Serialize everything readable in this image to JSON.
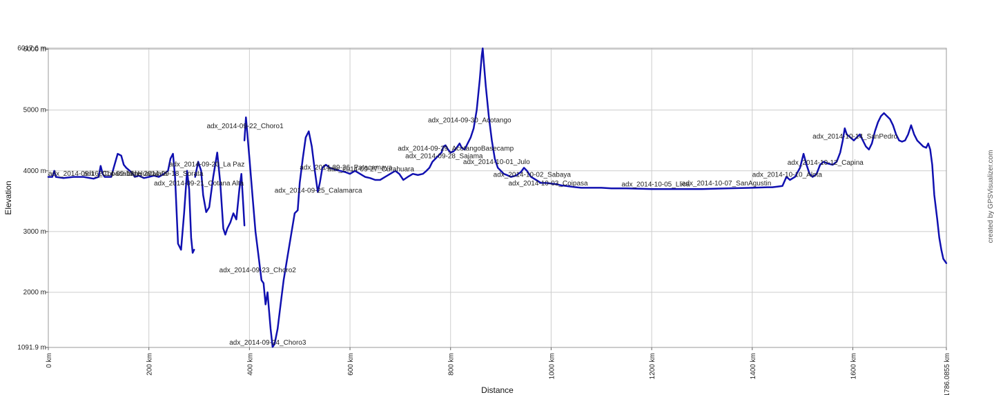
{
  "chart_data": {
    "type": "line",
    "xlabel": "Distance",
    "ylabel": "Elevation",
    "xlim": [
      0,
      1786.0855
    ],
    "ylim": [
      1091.9,
      6017.6
    ],
    "grid": true,
    "x_ticks": [
      {
        "value": 0,
        "label": "0 km"
      },
      {
        "value": 200,
        "label": "200 km"
      },
      {
        "value": 400,
        "label": "400 km"
      },
      {
        "value": 600,
        "label": "600 km"
      },
      {
        "value": 800,
        "label": "800 km"
      },
      {
        "value": 1000,
        "label": "1000 km"
      },
      {
        "value": 1200,
        "label": "1200 km"
      },
      {
        "value": 1400,
        "label": "1400 km"
      },
      {
        "value": 1600,
        "label": "1600 km"
      },
      {
        "value": 1786.0855,
        "label": "1786.0855 km"
      }
    ],
    "y_ticks": [
      {
        "value": 1091.9,
        "label": "1091.9 m"
      },
      {
        "value": 2000,
        "label": "2000 m"
      },
      {
        "value": 3000,
        "label": "3000 m"
      },
      {
        "value": 4000,
        "label": "4000 m"
      },
      {
        "value": 5000,
        "label": "5000 m"
      },
      {
        "value": 6000,
        "label": "6000 m"
      },
      {
        "value": 6017.6,
        "label": "6017.6 m"
      }
    ],
    "series": [
      {
        "color": "#1010b0",
        "segments": [
          [
            [
              0,
              3900
            ],
            [
              8,
              3900
            ],
            [
              12,
              4000
            ],
            [
              15,
              3900
            ],
            [
              30,
              3880
            ],
            [
              50,
              3900
            ],
            [
              70,
              3900
            ],
            [
              90,
              3870
            ],
            [
              100,
              3900
            ],
            [
              104,
              4080
            ],
            [
              108,
              3950
            ],
            [
              112,
              3900
            ],
            [
              125,
              3900
            ],
            [
              130,
              4050
            ],
            [
              138,
              4280
            ],
            [
              145,
              4250
            ],
            [
              150,
              4100
            ],
            [
              155,
              4050
            ],
            [
              162,
              4000
            ],
            [
              168,
              3950
            ],
            [
              172,
              3900
            ],
            [
              180,
              3920
            ],
            [
              190,
              3880
            ],
            [
              200,
              3900
            ],
            [
              210,
              3920
            ],
            [
              220,
              3900
            ],
            [
              230,
              3950
            ],
            [
              238,
              4000
            ],
            [
              243,
              4200
            ],
            [
              248,
              4280
            ],
            [
              252,
              3900
            ],
            [
              258,
              2800
            ],
            [
              264,
              2700
            ],
            [
              270,
              3300
            ],
            [
              276,
              4000
            ],
            [
              280,
              3700
            ],
            [
              284,
              2900
            ],
            [
              287,
              2650
            ],
            [
              290,
              2700
            ]
          ],
          [
            [
              292,
              3900
            ],
            [
              298,
              4150
            ],
            [
              304,
              4000
            ],
            [
              308,
              3600
            ],
            [
              314,
              3320
            ],
            [
              320,
              3400
            ],
            [
              328,
              3900
            ],
            [
              336,
              4300
            ],
            [
              342,
              3800
            ],
            [
              348,
              3050
            ],
            [
              352,
              2950
            ],
            [
              356,
              3050
            ],
            [
              362,
              3150
            ],
            [
              368,
              3300
            ],
            [
              374,
              3200
            ],
            [
              380,
              3700
            ],
            [
              384,
              3950
            ],
            [
              388,
              3400
            ],
            [
              390,
              3100
            ]
          ],
          [
            [
              390,
              4500
            ],
            [
              393,
              4880
            ],
            [
              396,
              4600
            ],
            [
              400,
              4200
            ],
            [
              406,
              3600
            ],
            [
              412,
              3000
            ],
            [
              418,
              2600
            ],
            [
              424,
              2200
            ],
            [
              428,
              2150
            ],
            [
              432,
              1800
            ],
            [
              436,
              2000
            ],
            [
              438,
              1800
            ],
            [
              442,
              1400
            ],
            [
              446,
              1100
            ],
            [
              450,
              1150
            ],
            [
              456,
              1400
            ],
            [
              462,
              1800
            ],
            [
              468,
              2200
            ],
            [
              476,
              2600
            ],
            [
              484,
              3000
            ],
            [
              490,
              3300
            ],
            [
              496,
              3350
            ],
            [
              500,
              3800
            ],
            [
              506,
              4200
            ],
            [
              512,
              4550
            ],
            [
              518,
              4650
            ],
            [
              524,
              4400
            ],
            [
              530,
              4000
            ],
            [
              536,
              3650
            ],
            [
              540,
              3800
            ],
            [
              545,
              4050
            ],
            [
              552,
              4100
            ],
            [
              560,
              4050
            ],
            [
              570,
              4020
            ],
            [
              580,
              4000
            ],
            [
              590,
              3980
            ],
            [
              600,
              3950
            ],
            [
              610,
              4000
            ],
            [
              620,
              3950
            ],
            [
              630,
              3900
            ],
            [
              640,
              3880
            ],
            [
              650,
              3850
            ],
            [
              660,
              3850
            ],
            [
              670,
              3900
            ],
            [
              680,
              3950
            ],
            [
              690,
              4000
            ],
            [
              698,
              3950
            ],
            [
              706,
              3850
            ],
            [
              715,
              3900
            ],
            [
              725,
              3950
            ],
            [
              735,
              3930
            ],
            [
              745,
              3950
            ],
            [
              752,
              4000
            ],
            [
              758,
              4050
            ],
            [
              764,
              4150
            ],
            [
              770,
              4200
            ],
            [
              776,
              4250
            ],
            [
              782,
              4300
            ],
            [
              786,
              4400
            ],
            [
              790,
              4420
            ],
            [
              795,
              4350
            ],
            [
              800,
              4300
            ],
            [
              806,
              4320
            ],
            [
              812,
              4380
            ],
            [
              818,
              4450
            ],
            [
              822,
              4380
            ],
            [
              828,
              4350
            ],
            [
              834,
              4450
            ],
            [
              840,
              4550
            ],
            [
              846,
              4700
            ],
            [
              852,
              5000
            ],
            [
              858,
              5500
            ],
            [
              862,
              5900
            ],
            [
              864,
              6017
            ],
            [
              866,
              5800
            ],
            [
              870,
              5400
            ],
            [
              876,
              4900
            ],
            [
              882,
              4500
            ],
            [
              888,
              4200
            ],
            [
              894,
              4050
            ],
            [
              900,
              4000
            ],
            [
              906,
              3950
            ],
            [
              912,
              3930
            ],
            [
              920,
              3900
            ],
            [
              930,
              3920
            ],
            [
              940,
              3980
            ],
            [
              946,
              4050
            ],
            [
              952,
              4000
            ],
            [
              960,
              3900
            ],
            [
              970,
              3850
            ],
            [
              980,
              3800
            ],
            [
              990,
              3800
            ],
            [
              1000,
              3790
            ],
            [
              1010,
              3780
            ],
            [
              1020,
              3760
            ],
            [
              1030,
              3750
            ],
            [
              1040,
              3740
            ],
            [
              1050,
              3730
            ],
            [
              1060,
              3720
            ],
            [
              1080,
              3720
            ],
            [
              1100,
              3720
            ],
            [
              1120,
              3710
            ],
            [
              1150,
              3710
            ],
            [
              1200,
              3700
            ],
            [
              1250,
              3700
            ],
            [
              1300,
              3700
            ],
            [
              1350,
              3710
            ],
            [
              1400,
              3720
            ],
            [
              1430,
              3730
            ],
            [
              1440,
              3730
            ],
            [
              1450,
              3740
            ],
            [
              1460,
              3750
            ],
            [
              1468,
              3900
            ],
            [
              1475,
              3850
            ],
            [
              1485,
              3900
            ],
            [
              1495,
              4050
            ],
            [
              1502,
              4280
            ],
            [
              1508,
              4100
            ],
            [
              1514,
              3950
            ],
            [
              1520,
              3900
            ],
            [
              1528,
              3950
            ],
            [
              1535,
              4100
            ],
            [
              1542,
              4150
            ],
            [
              1550,
              4120
            ],
            [
              1560,
              4100
            ],
            [
              1568,
              4150
            ],
            [
              1575,
              4300
            ],
            [
              1580,
              4500
            ],
            [
              1584,
              4700
            ],
            [
              1588,
              4600
            ],
            [
              1595,
              4550
            ],
            [
              1602,
              4500
            ],
            [
              1608,
              4550
            ],
            [
              1614,
              4600
            ],
            [
              1620,
              4500
            ],
            [
              1626,
              4400
            ],
            [
              1632,
              4350
            ],
            [
              1638,
              4450
            ],
            [
              1644,
              4650
            ],
            [
              1650,
              4800
            ],
            [
              1656,
              4900
            ],
            [
              1662,
              4950
            ],
            [
              1668,
              4900
            ],
            [
              1674,
              4850
            ],
            [
              1680,
              4750
            ],
            [
              1686,
              4600
            ],
            [
              1692,
              4500
            ],
            [
              1698,
              4480
            ],
            [
              1704,
              4500
            ],
            [
              1710,
              4600
            ],
            [
              1716,
              4750
            ],
            [
              1722,
              4600
            ],
            [
              1728,
              4500
            ],
            [
              1734,
              4450
            ],
            [
              1740,
              4400
            ],
            [
              1746,
              4380
            ],
            [
              1750,
              4450
            ],
            [
              1754,
              4350
            ],
            [
              1758,
              4100
            ],
            [
              1762,
              3600
            ],
            [
              1768,
              3200
            ],
            [
              1772,
              2900
            ],
            [
              1776,
              2700
            ],
            [
              1780,
              2550
            ],
            [
              1786,
              2480
            ]
          ]
        ]
      }
    ],
    "annotations": [
      {
        "x": 0,
        "y": 3920,
        "text": "adx_2014-09-16_Copacabana",
        "anchor": "start"
      },
      {
        "x": 70,
        "y": 3920,
        "text": "adx_2014-09-17_Huatajata",
        "anchor": "start"
      },
      {
        "x": 160,
        "y": 3920,
        "text": "adx_2014-09-18_Sorata",
        "anchor": "start"
      },
      {
        "x": 240,
        "y": 4070,
        "text": "adx_2014-09-20_La Paz",
        "anchor": "start"
      },
      {
        "x": 210,
        "y": 3760,
        "text": "adx_2014-09-21_Cotana Alta",
        "anchor": "start"
      },
      {
        "x": 315,
        "y": 4700,
        "text": "adx_2014-09-22_Choro1",
        "anchor": "start"
      },
      {
        "x": 340,
        "y": 2330,
        "text": "adx_2014-09-23_Choro2",
        "anchor": "start"
      },
      {
        "x": 360,
        "y": 1140,
        "text": "adx_2014-09-24_Choro3",
        "anchor": "start"
      },
      {
        "x": 450,
        "y": 3640,
        "text": "adx_2014-09-25_Calamarca",
        "anchor": "start"
      },
      {
        "x": 500,
        "y": 4020,
        "text": "adx_2014-09-26_Patacamaya",
        "anchor": "start"
      },
      {
        "x": 555,
        "y": 3990,
        "text": "adx_2014-09-27_Curahuara",
        "anchor": "start"
      },
      {
        "x": 710,
        "y": 4210,
        "text": "adx_2014-09-28_Sajama",
        "anchor": "start"
      },
      {
        "x": 695,
        "y": 4330,
        "text": "adx_2014-09-29_AcotangoBasecamp",
        "anchor": "start"
      },
      {
        "x": 755,
        "y": 4800,
        "text": "adx_2014-09-30_Acotango",
        "anchor": "start"
      },
      {
        "x": 825,
        "y": 4110,
        "text": "adx_2014-10-01_Julo",
        "anchor": "start"
      },
      {
        "x": 885,
        "y": 3900,
        "text": "adx_2014-10-02_Sabaya",
        "anchor": "start"
      },
      {
        "x": 915,
        "y": 3760,
        "text": "adx_2014-10-03_Coipasa",
        "anchor": "start"
      },
      {
        "x": 1140,
        "y": 3740,
        "text": "adx_2014-10-05_Llica",
        "anchor": "start"
      },
      {
        "x": 1260,
        "y": 3760,
        "text": "adx_2014-10-07_SanAgustin",
        "anchor": "start"
      },
      {
        "x": 1400,
        "y": 3900,
        "text": "adx_2014-10-10_Alota",
        "anchor": "start"
      },
      {
        "x": 1470,
        "y": 4100,
        "text": "adx_2014-10-12_Capina",
        "anchor": "start"
      },
      {
        "x": 1520,
        "y": 4530,
        "text": "adx_2014-10-14_SanPedro",
        "anchor": "start"
      }
    ],
    "credit": "created by GPSVisualizer.com"
  }
}
